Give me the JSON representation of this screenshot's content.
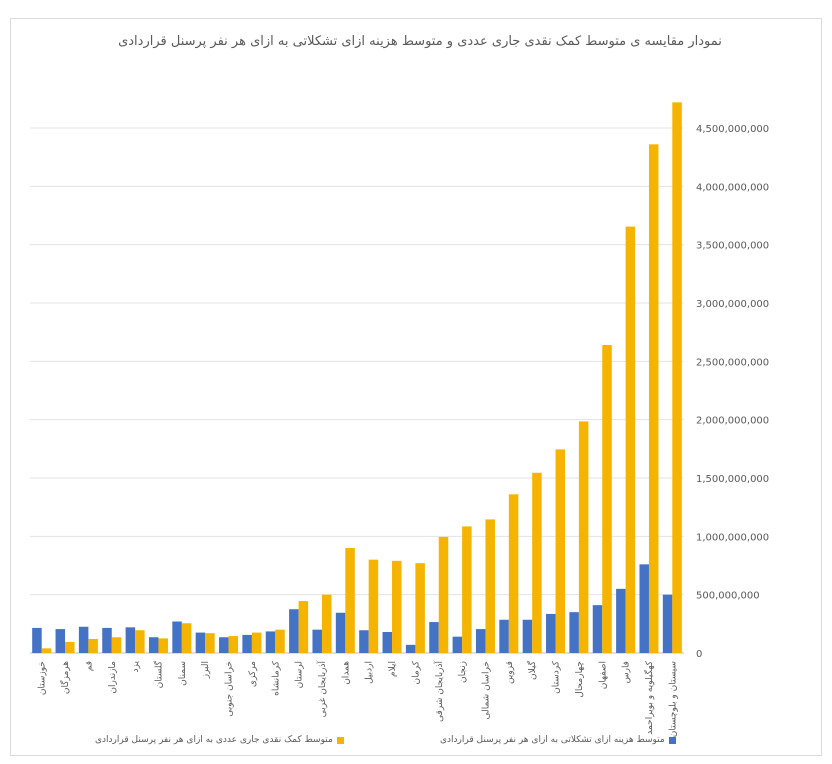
{
  "chart_data": {
    "type": "bar",
    "title": "نمودار مقایسه ی متوسط کمک نقدی جاری عددی و متوسط هزینه ازای تشکلاتی به ازای هر نفر پرسنل قراردادی",
    "ylim": [
      0,
      4500000000
    ],
    "y_axis_position": "right",
    "y_ticks": [
      "4,500,000,000",
      "4,000,000,000",
      "3,500,000,000",
      "3,000,000,000",
      "2,500,000,000",
      "2,000,000,000",
      "1,500,000,000",
      "1,000,000,000",
      "500,000,000",
      "0"
    ],
    "y_tick_values": [
      4500000000,
      4000000000,
      3500000000,
      3000000000,
      2500000000,
      2000000000,
      1500000000,
      1000000000,
      500000000,
      0
    ],
    "grid": true,
    "legend_position": "bottom",
    "categories": [
      "خوزستان",
      "هرمزگان",
      "قم",
      "مازندران",
      "یزد",
      "گلستان",
      "سمنان",
      "البرز",
      "خراسان جنوبی",
      "مرکزی",
      "کرمانشاه",
      "لرستان",
      "آذربایجان غربی",
      "همدان",
      "اردبیل",
      "ایلام",
      "کرمان",
      "آذربایجان شرقی",
      "زنجان",
      "خراسان شمالی",
      "قزوین",
      "گیلان",
      "کردستان",
      "چهارمحال",
      "اصفهان",
      "فارس",
      "کهگیلویه و بویراحمد",
      "سیستان و بلوچستان"
    ],
    "series": [
      {
        "name": "متوسط هزینه ازای تشکلاتی به ازای هر نفر پرسنل قراردادی",
        "color": "#4472c4",
        "values": [
          215000000,
          205000000,
          225000000,
          215000000,
          220000000,
          135000000,
          270000000,
          175000000,
          135000000,
          155000000,
          185000000,
          375000000,
          200000000,
          345000000,
          195000000,
          180000000,
          70000000,
          265000000,
          140000000,
          205000000,
          285000000,
          285000000,
          335000000,
          350000000,
          410000000,
          550000000,
          760000000,
          500000000
        ]
      },
      {
        "name": "متوسط کمک نقدی جاری عددی به ازای هر نفر پرسنل قراردادی",
        "color": "#f4b400",
        "values": [
          40000000,
          95000000,
          120000000,
          135000000,
          195000000,
          125000000,
          255000000,
          170000000,
          145000000,
          175000000,
          200000000,
          445000000,
          500000000,
          900000000,
          800000000,
          790000000,
          770000000,
          995000000,
          1085000000,
          1145000000,
          1360000000,
          1545000000,
          1745000000,
          1985000000,
          2640000000,
          3655000000,
          4360000000,
          4720000000
        ]
      }
    ]
  }
}
